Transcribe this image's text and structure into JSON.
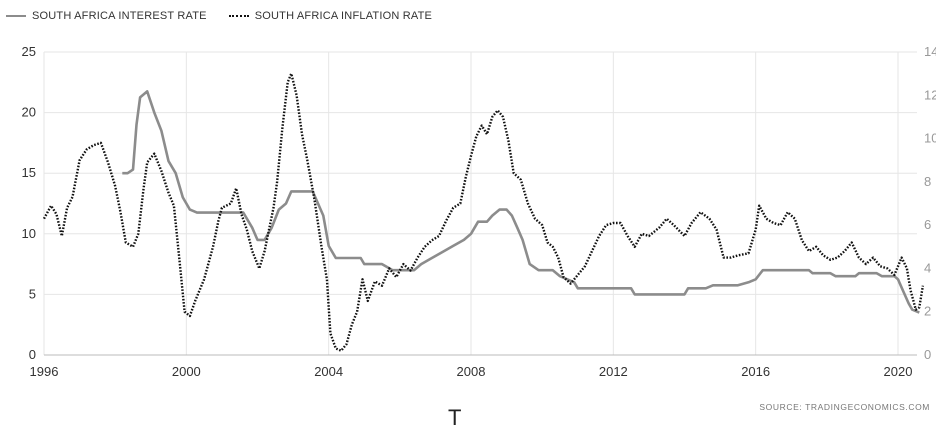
{
  "chart_data": {
    "type": "line",
    "title": "",
    "xlabel": "",
    "ylabel": "",
    "xlim": [
      1996,
      2020.8
    ],
    "ylim_left": [
      0,
      25
    ],
    "ylim_right": [
      0,
      14
    ],
    "x_ticks": [
      "1996",
      "2000",
      "2004",
      "2008",
      "2012",
      "2016",
      "2020"
    ],
    "y_ticks_left": [
      "0",
      "5",
      "10",
      "15",
      "20",
      "25"
    ],
    "y_ticks_right": [
      "0",
      "2",
      "4",
      "6",
      "8",
      "10",
      "12",
      "14"
    ],
    "grid": true,
    "legend_position": "top-left",
    "series": [
      {
        "name": "SOUTH AFRICA INTEREST RATE",
        "axis": "left",
        "color": "#8c8c8c",
        "style": "solid",
        "points": [
          [
            1998.2,
            15.0
          ],
          [
            1998.35,
            15.0
          ],
          [
            1998.5,
            15.3
          ],
          [
            1998.6,
            19.0
          ],
          [
            1998.7,
            21.25
          ],
          [
            1998.9,
            21.75
          ],
          [
            1999.1,
            20.0
          ],
          [
            1999.3,
            18.5
          ],
          [
            1999.5,
            16.0
          ],
          [
            1999.7,
            15.0
          ],
          [
            1999.9,
            13.0
          ],
          [
            2000.1,
            12.0
          ],
          [
            2000.3,
            11.75
          ],
          [
            2000.8,
            11.75
          ],
          [
            2001.3,
            11.75
          ],
          [
            2001.6,
            11.75
          ],
          [
            2001.85,
            10.5
          ],
          [
            2002.0,
            9.5
          ],
          [
            2002.2,
            9.5
          ],
          [
            2002.4,
            10.5
          ],
          [
            2002.6,
            12.0
          ],
          [
            2002.8,
            12.5
          ],
          [
            2002.95,
            13.5
          ],
          [
            2003.3,
            13.5
          ],
          [
            2003.55,
            13.5
          ],
          [
            2003.7,
            12.5
          ],
          [
            2003.85,
            11.5
          ],
          [
            2004.0,
            9.0
          ],
          [
            2004.2,
            8.0
          ],
          [
            2004.5,
            8.0
          ],
          [
            2004.9,
            8.0
          ],
          [
            2005.0,
            7.5
          ],
          [
            2005.5,
            7.5
          ],
          [
            2005.8,
            7.0
          ],
          [
            2006.4,
            7.0
          ],
          [
            2006.6,
            7.5
          ],
          [
            2006.9,
            8.0
          ],
          [
            2007.2,
            8.5
          ],
          [
            2007.5,
            9.0
          ],
          [
            2007.8,
            9.5
          ],
          [
            2008.0,
            10.0
          ],
          [
            2008.2,
            11.0
          ],
          [
            2008.45,
            11.0
          ],
          [
            2008.6,
            11.5
          ],
          [
            2008.8,
            12.0
          ],
          [
            2009.0,
            12.0
          ],
          [
            2009.15,
            11.5
          ],
          [
            2009.3,
            10.5
          ],
          [
            2009.45,
            9.5
          ],
          [
            2009.65,
            7.5
          ],
          [
            2009.9,
            7.0
          ],
          [
            2010.3,
            7.0
          ],
          [
            2010.5,
            6.5
          ],
          [
            2010.9,
            6.0
          ],
          [
            2011.0,
            5.5
          ],
          [
            2011.5,
            5.5
          ],
          [
            2012.0,
            5.5
          ],
          [
            2012.5,
            5.5
          ],
          [
            2012.6,
            5.0
          ],
          [
            2013.5,
            5.0
          ],
          [
            2014.0,
            5.0
          ],
          [
            2014.1,
            5.5
          ],
          [
            2014.6,
            5.5
          ],
          [
            2014.8,
            5.75
          ],
          [
            2015.5,
            5.75
          ],
          [
            2015.8,
            6.0
          ],
          [
            2016.0,
            6.25
          ],
          [
            2016.2,
            7.0
          ],
          [
            2016.6,
            7.0
          ],
          [
            2017.0,
            7.0
          ],
          [
            2017.5,
            7.0
          ],
          [
            2017.6,
            6.75
          ],
          [
            2018.1,
            6.75
          ],
          [
            2018.25,
            6.5
          ],
          [
            2018.8,
            6.5
          ],
          [
            2018.9,
            6.75
          ],
          [
            2019.4,
            6.75
          ],
          [
            2019.55,
            6.5
          ],
          [
            2019.9,
            6.5
          ],
          [
            2020.0,
            6.25
          ],
          [
            2020.15,
            5.25
          ],
          [
            2020.3,
            4.25
          ],
          [
            2020.4,
            3.75
          ],
          [
            2020.6,
            3.5
          ]
        ]
      },
      {
        "name": "SOUTH AFRICA INFLATION RATE",
        "axis": "right",
        "color": "#111111",
        "style": "dotted",
        "points": [
          [
            1996.0,
            6.3
          ],
          [
            1996.2,
            6.9
          ],
          [
            1996.35,
            6.5
          ],
          [
            1996.5,
            5.5
          ],
          [
            1996.65,
            6.8
          ],
          [
            1996.8,
            7.3
          ],
          [
            1997.0,
            9.0
          ],
          [
            1997.2,
            9.5
          ],
          [
            1997.4,
            9.7
          ],
          [
            1997.6,
            9.8
          ],
          [
            1997.8,
            8.9
          ],
          [
            1998.0,
            7.8
          ],
          [
            1998.15,
            6.6
          ],
          [
            1998.3,
            5.2
          ],
          [
            1998.5,
            5.0
          ],
          [
            1998.65,
            5.6
          ],
          [
            1998.8,
            7.7
          ],
          [
            1998.9,
            8.9
          ],
          [
            1999.1,
            9.3
          ],
          [
            1999.3,
            8.5
          ],
          [
            1999.5,
            7.5
          ],
          [
            1999.65,
            6.9
          ],
          [
            1999.8,
            4.5
          ],
          [
            1999.95,
            2.0
          ],
          [
            2000.1,
            1.8
          ],
          [
            2000.25,
            2.5
          ],
          [
            2000.5,
            3.5
          ],
          [
            2000.75,
            5.0
          ],
          [
            2000.9,
            6.2
          ],
          [
            2001.0,
            6.8
          ],
          [
            2001.25,
            7.0
          ],
          [
            2001.4,
            7.7
          ],
          [
            2001.55,
            6.5
          ],
          [
            2001.7,
            5.8
          ],
          [
            2001.85,
            4.8
          ],
          [
            2002.05,
            4.0
          ],
          [
            2002.2,
            4.8
          ],
          [
            2002.45,
            6.8
          ],
          [
            2002.55,
            8.0
          ],
          [
            2002.7,
            10.5
          ],
          [
            2002.85,
            12.6
          ],
          [
            2002.95,
            13.0
          ],
          [
            2003.1,
            12.0
          ],
          [
            2003.25,
            10.2
          ],
          [
            2003.4,
            9.0
          ],
          [
            2003.6,
            7.2
          ],
          [
            2003.8,
            5.0
          ],
          [
            2003.95,
            3.5
          ],
          [
            2004.05,
            1.0
          ],
          [
            2004.2,
            0.3
          ],
          [
            2004.35,
            0.2
          ],
          [
            2004.5,
            0.5
          ],
          [
            2004.65,
            1.4
          ],
          [
            2004.8,
            2.0
          ],
          [
            2004.95,
            3.5
          ],
          [
            2005.1,
            2.5
          ],
          [
            2005.3,
            3.4
          ],
          [
            2005.5,
            3.2
          ],
          [
            2005.7,
            4.0
          ],
          [
            2005.9,
            3.6
          ],
          [
            2006.1,
            4.2
          ],
          [
            2006.3,
            3.9
          ],
          [
            2006.5,
            4.5
          ],
          [
            2006.7,
            5.0
          ],
          [
            2006.9,
            5.3
          ],
          [
            2007.1,
            5.5
          ],
          [
            2007.3,
            6.2
          ],
          [
            2007.5,
            6.8
          ],
          [
            2007.7,
            7.0
          ],
          [
            2007.85,
            8.2
          ],
          [
            2008.0,
            9.2
          ],
          [
            2008.15,
            10.1
          ],
          [
            2008.3,
            10.6
          ],
          [
            2008.45,
            10.2
          ],
          [
            2008.6,
            11.0
          ],
          [
            2008.75,
            11.3
          ],
          [
            2008.9,
            11.0
          ],
          [
            2009.05,
            9.9
          ],
          [
            2009.2,
            8.4
          ],
          [
            2009.4,
            8.1
          ],
          [
            2009.6,
            7.0
          ],
          [
            2009.8,
            6.3
          ],
          [
            2010.0,
            6.0
          ],
          [
            2010.15,
            5.2
          ],
          [
            2010.3,
            5.0
          ],
          [
            2010.45,
            4.5
          ],
          [
            2010.6,
            3.6
          ],
          [
            2010.8,
            3.3
          ],
          [
            2011.0,
            3.7
          ],
          [
            2011.2,
            4.1
          ],
          [
            2011.4,
            4.8
          ],
          [
            2011.6,
            5.5
          ],
          [
            2011.8,
            6.0
          ],
          [
            2012.0,
            6.1
          ],
          [
            2012.2,
            6.1
          ],
          [
            2012.4,
            5.5
          ],
          [
            2012.6,
            5.0
          ],
          [
            2012.8,
            5.6
          ],
          [
            2013.0,
            5.5
          ],
          [
            2013.3,
            5.9
          ],
          [
            2013.5,
            6.3
          ],
          [
            2013.7,
            6.0
          ],
          [
            2014.0,
            5.5
          ],
          [
            2014.2,
            6.1
          ],
          [
            2014.45,
            6.6
          ],
          [
            2014.7,
            6.3
          ],
          [
            2014.9,
            5.8
          ],
          [
            2015.1,
            4.5
          ],
          [
            2015.3,
            4.5
          ],
          [
            2015.5,
            4.6
          ],
          [
            2015.8,
            4.7
          ],
          [
            2016.0,
            5.8
          ],
          [
            2016.1,
            6.9
          ],
          [
            2016.3,
            6.3
          ],
          [
            2016.5,
            6.1
          ],
          [
            2016.7,
            6.0
          ],
          [
            2016.9,
            6.6
          ],
          [
            2017.1,
            6.3
          ],
          [
            2017.3,
            5.3
          ],
          [
            2017.5,
            4.8
          ],
          [
            2017.7,
            5.0
          ],
          [
            2017.9,
            4.6
          ],
          [
            2018.1,
            4.4
          ],
          [
            2018.3,
            4.5
          ],
          [
            2018.5,
            4.8
          ],
          [
            2018.7,
            5.2
          ],
          [
            2018.9,
            4.5
          ],
          [
            2019.1,
            4.2
          ],
          [
            2019.3,
            4.5
          ],
          [
            2019.5,
            4.1
          ],
          [
            2019.7,
            4.0
          ],
          [
            2019.9,
            3.7
          ],
          [
            2020.1,
            4.5
          ],
          [
            2020.25,
            4.0
          ],
          [
            2020.35,
            3.0
          ],
          [
            2020.5,
            2.1
          ],
          [
            2020.6,
            2.2
          ],
          [
            2020.7,
            3.2
          ]
        ]
      }
    ],
    "annotations": [
      "SOURCE:  TRADINGECONOMICS.COM",
      "T"
    ]
  }
}
